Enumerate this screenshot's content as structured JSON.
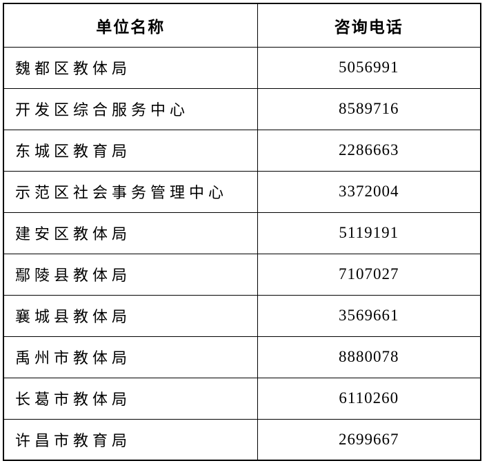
{
  "table": {
    "headers": [
      "单位名称",
      "咨询电话"
    ],
    "rows": [
      {
        "name": "魏都区教体局",
        "phone": "5056991"
      },
      {
        "name": "开发区综合服务中心",
        "phone": "8589716"
      },
      {
        "name": "东城区教育局",
        "phone": "2286663"
      },
      {
        "name": "示范区社会事务管理中心",
        "phone": "3372004"
      },
      {
        "name": "建安区教体局",
        "phone": "5119191"
      },
      {
        "name": "鄢陵县教体局",
        "phone": "7107027"
      },
      {
        "name": "襄城县教体局",
        "phone": "3569661"
      },
      {
        "name": "禹州市教体局",
        "phone": "8880078"
      },
      {
        "name": "长葛市教体局",
        "phone": "6110260"
      },
      {
        "name": "许昌市教育局",
        "phone": "2699667"
      }
    ]
  }
}
